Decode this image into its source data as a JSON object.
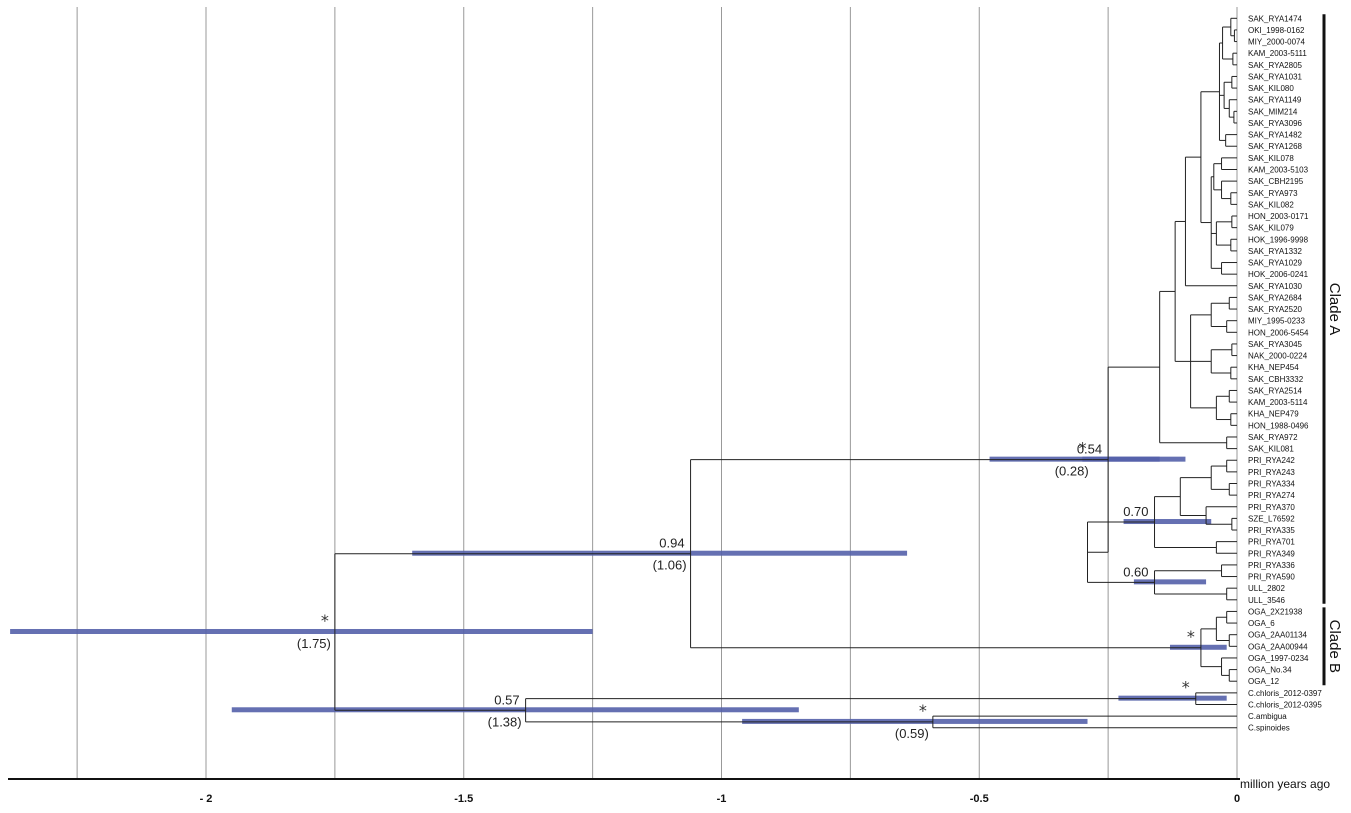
{
  "axis": {
    "unit_label": "million years ago",
    "ticks": [
      {
        "value": -2,
        "label": "- 2"
      },
      {
        "value": -1.5,
        "label": "-1.5"
      },
      {
        "value": -1,
        "label": "-1"
      },
      {
        "value": -0.5,
        "label": "-0.5"
      },
      {
        "value": 0,
        "label": "0"
      }
    ],
    "gridlines": [
      -2.25,
      -2,
      -1.75,
      -1.5,
      -1.25,
      -1,
      -0.75,
      -0.5,
      -0.25,
      0
    ],
    "range": [
      -2.38,
      0.1
    ]
  },
  "colors": {
    "hpd_bar": "#5461aa",
    "branch": "#222222",
    "grid": "#999999"
  },
  "taxa": [
    "SAK_RYA1474",
    "OKI_1998-0162",
    "MIY_2000-0074",
    "KAM_2003-5111",
    "SAK_RYA2805",
    "SAK_RYA1031",
    "SAK_KIL080",
    "SAK_RYA1149",
    "SAK_MIM214",
    "SAK_RYA3096",
    "SAK_RYA1482",
    "SAK_RYA1268",
    "SAK_KIL078",
    "KAM_2003-5103",
    "SAK_CBH2195",
    "SAK_RYA973",
    "SAK_KIL082",
    "HON_2003-0171",
    "SAK_KIL079",
    "HOK_1996-9998",
    "SAK_RYA1332",
    "SAK_RYA1029",
    "HOK_2006-0241",
    "SAK_RYA1030",
    "SAK_RYA2684",
    "SAK_RYA2520",
    "MIY_1995-0233",
    "HON_2006-5454",
    "SAK_RYA3045",
    "NAK_2000-0224",
    "KHA_NEP454",
    "SAK_CBH3332",
    "SAK_RYA2514",
    "KAM_2003-5114",
    "KHA_NEP479",
    "HON_1988-0496",
    "SAK_RYA972",
    "SAK_KIL081",
    "PRI_RYA242",
    "PRI_RYA243",
    "PRI_RYA334",
    "PRI_RYA274",
    "PRI_RYA370",
    "SZE_L76592",
    "PRI_RYA335",
    "PRI_RYA701",
    "PRI_RYA349",
    "PRI_RYA336",
    "PRI_RYA590",
    "ULL_2802",
    "ULL_3546",
    "OGA_2X21938",
    "OGA_6",
    "OGA_2AA01134",
    "OGA_2AA00944",
    "OGA_1997-0234",
    "OGA_No.34",
    "OGA_12",
    "C.chloris_2012-0397",
    "C.chloris_2012-0395",
    "C.ambigua",
    "C.spinoides"
  ],
  "clades": [
    {
      "label": "Clade A",
      "from_taxon": 0,
      "to_taxon": 50
    },
    {
      "label": "Clade B",
      "from_taxon": 51,
      "to_taxon": 57
    }
  ],
  "nodes": [
    {
      "id": "root",
      "age": 1.75,
      "support": "*",
      "age_label": "(1.75)",
      "hpd": [
        1.25,
        2.38
      ]
    },
    {
      "id": "AB",
      "age": 1.06,
      "support": "0.94",
      "age_label": "(1.06)",
      "hpd": [
        0.64,
        1.6
      ]
    },
    {
      "id": "outgroup",
      "age": 1.38,
      "support": "0.57",
      "age_label": "(1.38)",
      "hpd": [
        0.85,
        1.95
      ]
    },
    {
      "id": "A",
      "age": 0.28,
      "support": "*",
      "age_label": "(0.28)",
      "hpd": [
        0.15,
        0.48
      ]
    },
    {
      "id": "A_main",
      "age": 0.25,
      "support": "0.54",
      "age_label": "",
      "hpd": [
        0.1,
        0.3
      ]
    },
    {
      "id": "PRI_a",
      "age": 0.16,
      "support": "0.70",
      "age_label": "",
      "hpd": [
        0.05,
        0.22
      ]
    },
    {
      "id": "PRI_b",
      "age": 0.16,
      "support": "0.60",
      "age_label": "",
      "hpd": [
        0.06,
        0.2
      ]
    },
    {
      "id": "B",
      "age": 0.07,
      "support": "*",
      "age_label": "",
      "hpd": [
        0.02,
        0.13
      ]
    },
    {
      "id": "chloris",
      "age": 0.08,
      "support": "*",
      "age_label": "",
      "hpd": [
        0.02,
        0.23
      ]
    },
    {
      "id": "amb_spin",
      "age": 0.59,
      "support": "*",
      "age_label": "(0.59)",
      "hpd": [
        0.29,
        0.96
      ]
    }
  ]
}
